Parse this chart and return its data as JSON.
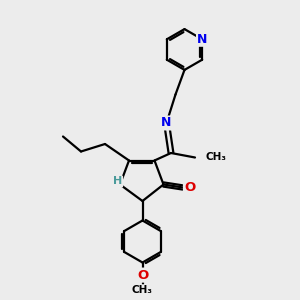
{
  "bg_color": "#ececec",
  "bond_color": "#000000",
  "bond_width": 1.6,
  "atom_colors": {
    "N": "#0000ee",
    "O": "#dd0000",
    "H": "#4a9a9a",
    "C": "#000000"
  },
  "font_size": 8.5,
  "figsize": [
    3.0,
    3.0
  ],
  "dpi": 100
}
